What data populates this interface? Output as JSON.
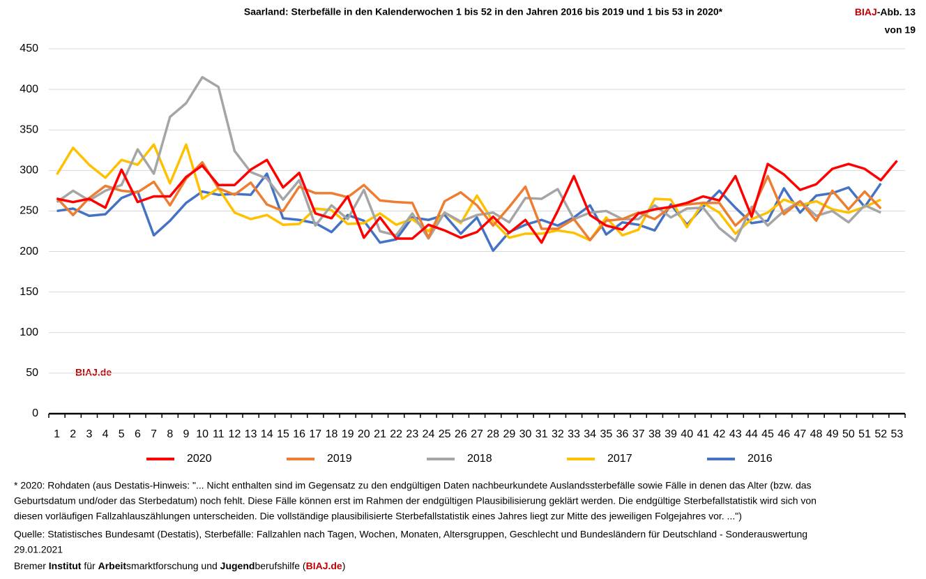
{
  "chart_data": {
    "type": "line",
    "title": "Saarland: Sterbefälle in den Kalenderwochen 1 bis 52 in den Jahren 2016 bis 2019 und 1 bis 53 in 2020*",
    "badge": [
      "BIAJ",
      "-Abb. 13",
      "von 19"
    ],
    "watermark": "BIAJ.de",
    "categories": [
      1,
      2,
      3,
      4,
      5,
      6,
      7,
      8,
      9,
      10,
      11,
      12,
      13,
      14,
      15,
      16,
      17,
      18,
      19,
      20,
      21,
      22,
      23,
      24,
      25,
      26,
      27,
      28,
      29,
      30,
      31,
      32,
      33,
      34,
      35,
      36,
      37,
      38,
      39,
      40,
      41,
      42,
      43,
      44,
      45,
      46,
      47,
      48,
      49,
      50,
      51,
      52,
      53
    ],
    "ylim": [
      0,
      450
    ],
    "yticks": [
      0,
      50,
      100,
      150,
      200,
      250,
      300,
      350,
      400,
      450
    ],
    "grid": true,
    "legend": "bottom",
    "series": [
      {
        "name": "2020",
        "color": "#ff0000",
        "values": [
          265,
          261,
          265,
          254,
          301,
          261,
          268,
          268,
          292,
          306,
          282,
          282,
          301,
          313,
          279,
          297,
          247,
          241,
          268,
          217,
          242,
          216,
          216,
          233,
          226,
          217,
          224,
          243,
          223,
          239,
          211,
          250,
          293,
          245,
          232,
          227,
          247,
          252,
          255,
          260,
          268,
          263,
          293,
          243,
          308,
          295,
          276,
          283,
          302,
          308,
          302,
          288,
          312
        ]
      },
      {
        "name": "2019",
        "color": "#ed7d31",
        "values": [
          266,
          245,
          266,
          281,
          275,
          273,
          286,
          257,
          290,
          310,
          278,
          270,
          285,
          258,
          250,
          280,
          272,
          272,
          267,
          282,
          263,
          261,
          260,
          217,
          262,
          273,
          257,
          232,
          255,
          280,
          228,
          228,
          240,
          214,
          238,
          240,
          248,
          240,
          255,
          258,
          260,
          260,
          232,
          250,
          293,
          246,
          262,
          238,
          275,
          252,
          274,
          253,
          null
        ]
      },
      {
        "name": "2018",
        "color": "#a5a5a5",
        "values": [
          261,
          275,
          263,
          275,
          282,
          326,
          296,
          366,
          383,
          415,
          403,
          324,
          298,
          290,
          264,
          288,
          232,
          257,
          240,
          276,
          225,
          220,
          247,
          216,
          248,
          237,
          245,
          248,
          236,
          266,
          265,
          277,
          240,
          248,
          250,
          240,
          240,
          257,
          242,
          253,
          254,
          229,
          213,
          255,
          232,
          250,
          262,
          244,
          250,
          236,
          257,
          248,
          null
        ]
      },
      {
        "name": "2017",
        "color": "#ffc000",
        "values": [
          295,
          328,
          307,
          291,
          313,
          307,
          332,
          284,
          332,
          265,
          278,
          248,
          240,
          245,
          233,
          234,
          253,
          251,
          234,
          235,
          247,
          233,
          240,
          225,
          248,
          235,
          269,
          237,
          217,
          222,
          222,
          226,
          223,
          214,
          242,
          220,
          227,
          265,
          264,
          230,
          260,
          248,
          222,
          240,
          248,
          264,
          257,
          262,
          252,
          248,
          255,
          264,
          null
        ]
      },
      {
        "name": "2016",
        "color": "#4472c4",
        "values": [
          250,
          253,
          244,
          246,
          266,
          274,
          220,
          238,
          260,
          274,
          270,
          271,
          270,
          296,
          241,
          239,
          235,
          224,
          245,
          238,
          211,
          215,
          242,
          239,
          245,
          222,
          242,
          201,
          224,
          233,
          239,
          232,
          242,
          257,
          221,
          236,
          233,
          226,
          258,
          233,
          255,
          275,
          254,
          235,
          238,
          278,
          248,
          269,
          272,
          279,
          255,
          284,
          null
        ]
      }
    ],
    "footnote": [
      "* 2020: Rohdaten (aus Destatis-Hinweis: \"... Nicht enthalten sind im Gegensatz zu den endgültigen Daten nachbeurkundete Auslandssterbefälle sowie Fälle in denen das Alter (bzw. das",
      "Geburtsdatum und/oder das Sterbedatum) noch fehlt. Diese Fälle können erst im Rahmen der endgültigen Plausibilisierung geklärt werden. Die endgültige Sterbefallstatistik wird sich von",
      "diesen vorläufigen Fallzahlauszählungen unterscheiden. Die vollständige plausibilisierte Sterbefallstatistik eines Jahres liegt zur Mitte des jeweiligen Folgejahres vor. ...\")",
      "Quelle: Statistisches Bundesamt (Destatis), Sterbefälle: Fallzahlen nach Tagen, Wochen, Monaten, Altersgruppen, Geschlecht und Bundesländern für Deutschland - Sonderauswertung",
      "29.01.2021"
    ],
    "credit": [
      "Bremer ",
      "Institut",
      " für ",
      "Arbeit",
      "smarktforschung und ",
      "Jugend",
      "berufshilfe (",
      "BIAJ.de",
      ")"
    ]
  }
}
